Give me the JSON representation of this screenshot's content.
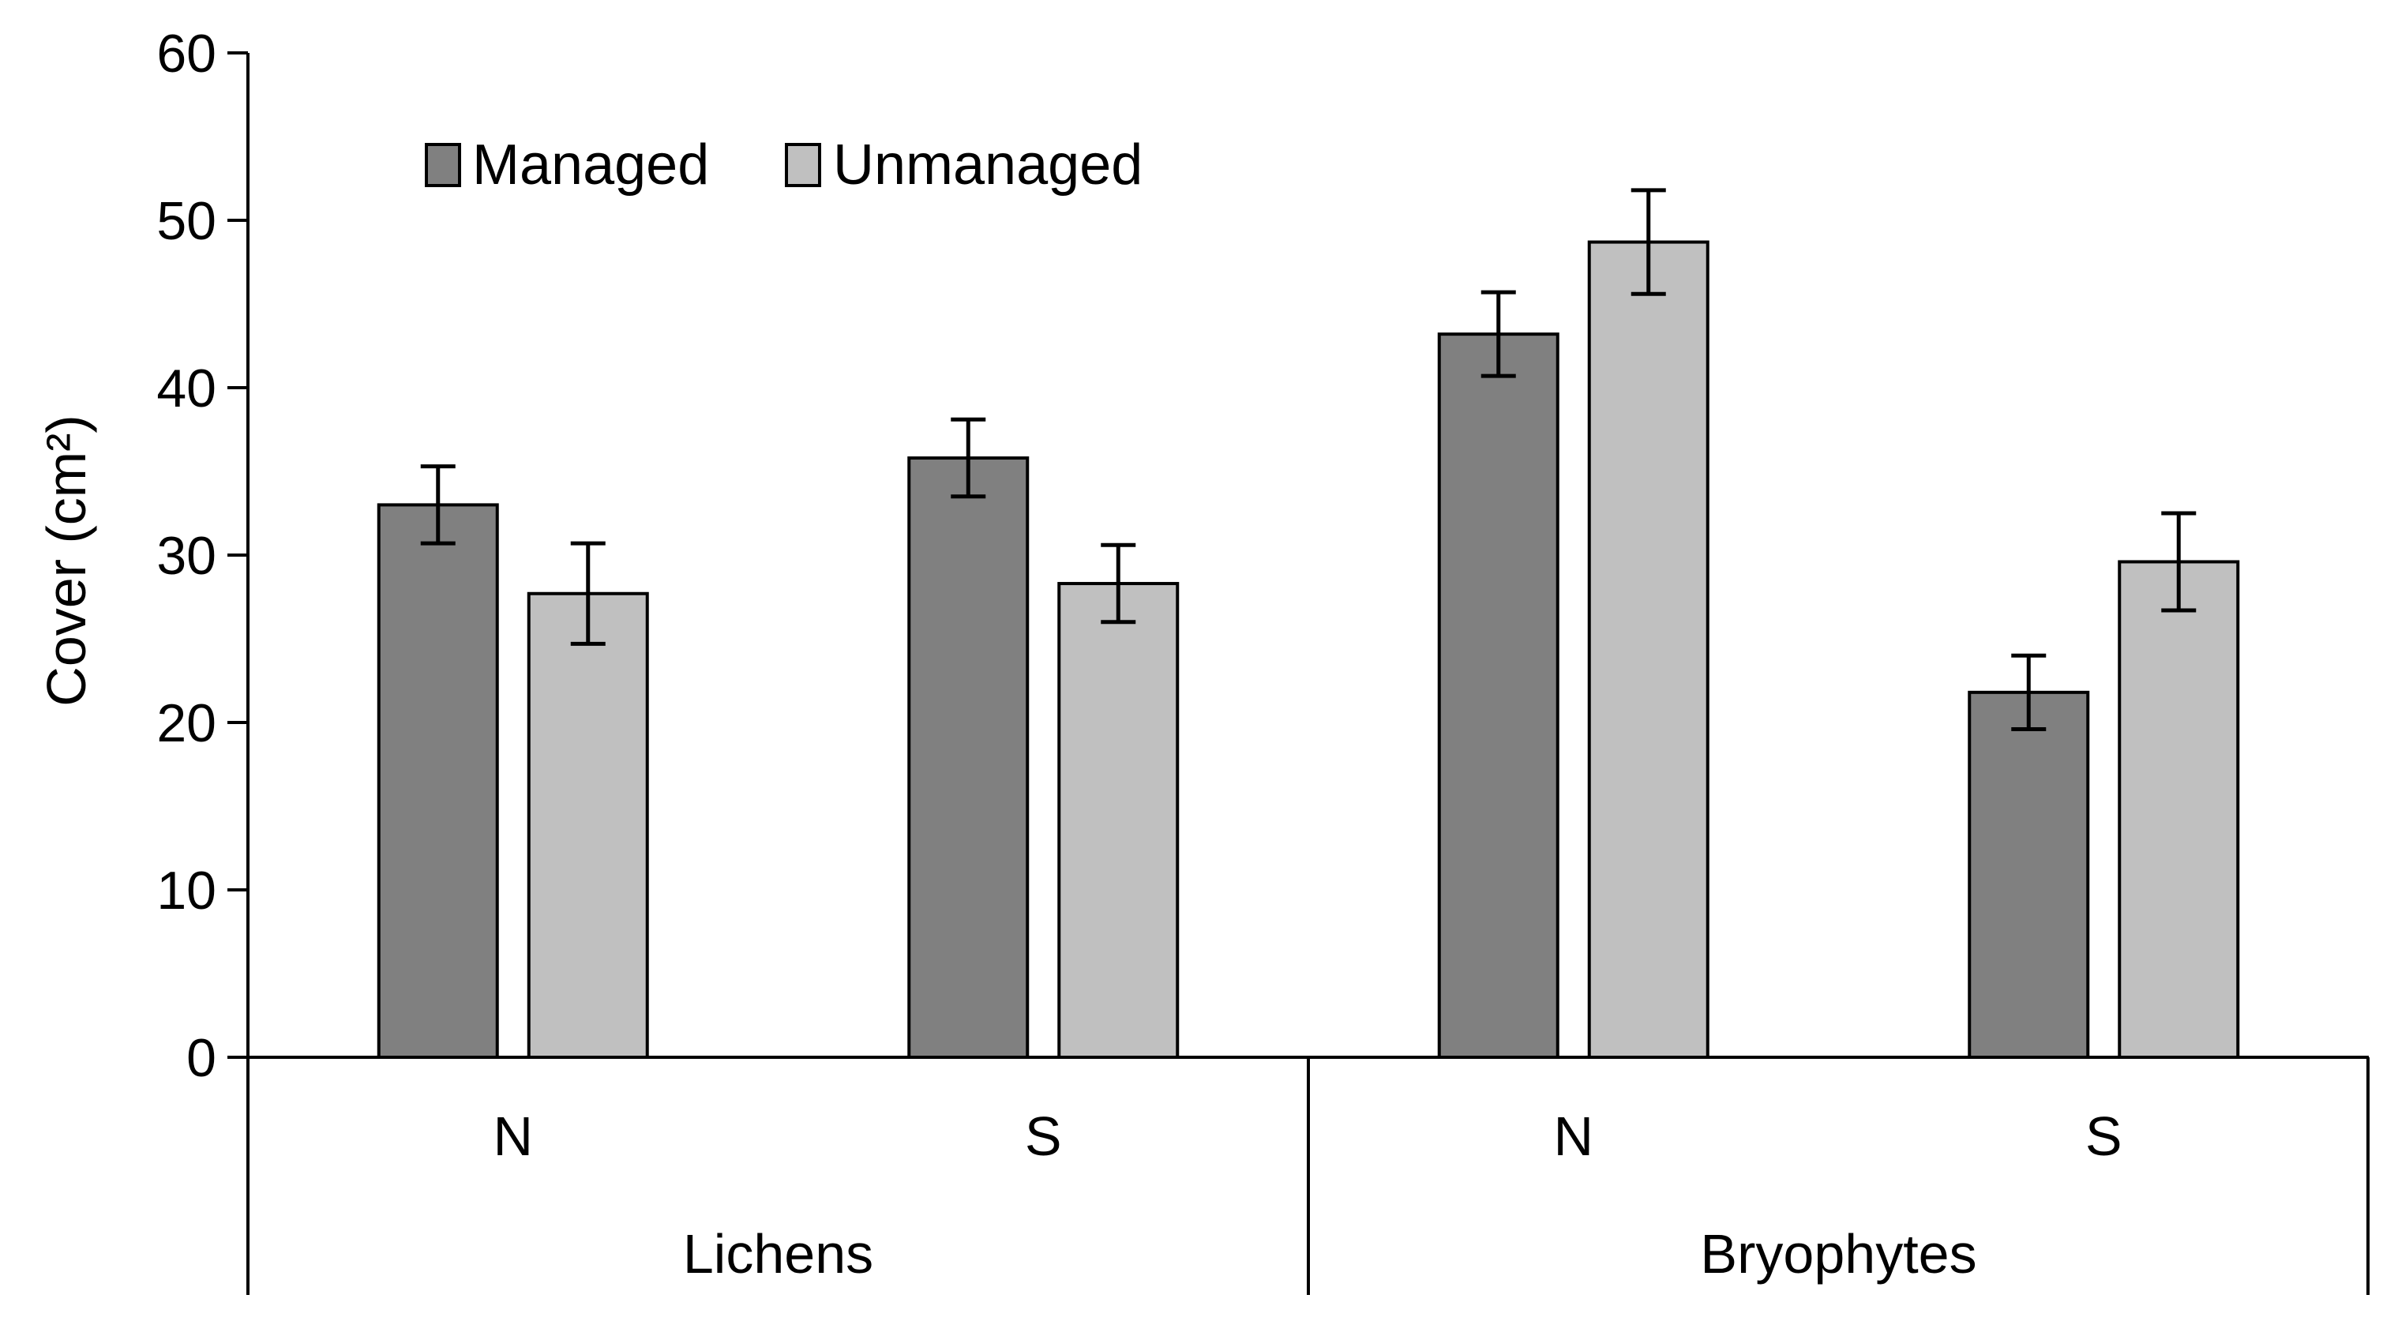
{
  "chart_data": {
    "type": "bar",
    "title": "",
    "xlabel": "",
    "ylabel": "Cover (cm²)",
    "ylim": [
      0,
      60
    ],
    "yticks": [
      0,
      10,
      20,
      30,
      40,
      50,
      60
    ],
    "grid": false,
    "legend_position": "top-left",
    "groups": [
      {
        "label": "Lichens",
        "categories": [
          "N",
          "S"
        ]
      },
      {
        "label": "Bryophytes",
        "categories": [
          "N",
          "S"
        ]
      }
    ],
    "categories": [
      "N",
      "S",
      "N",
      "S"
    ],
    "series": [
      {
        "name": "Managed",
        "color": "#808080",
        "values": [
          33.0,
          35.8,
          43.2,
          21.8
        ],
        "errors": [
          2.3,
          2.3,
          2.5,
          2.2
        ]
      },
      {
        "name": "Unmanaged",
        "color": "#c0c0c0",
        "values": [
          27.7,
          28.3,
          48.7,
          29.6
        ],
        "errors": [
          3.0,
          2.3,
          3.1,
          2.9
        ]
      }
    ]
  }
}
